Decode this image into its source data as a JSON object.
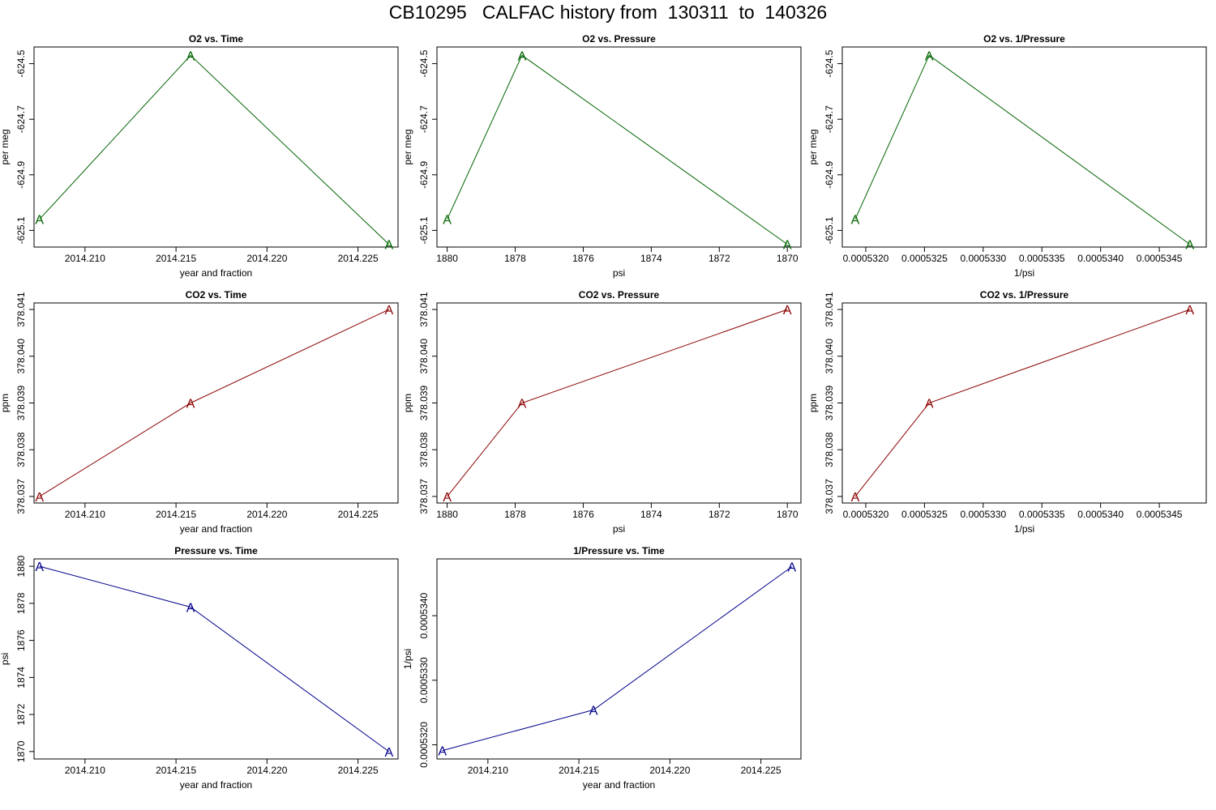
{
  "title": "CB10295   CALFAC history from  130311  to  140326",
  "colors": {
    "o2": "#006400",
    "co2": "#8b0000",
    "pressure": "#00008b",
    "frame": "#000000"
  },
  "chart_data": [
    {
      "type": "line",
      "title": "O2 vs. Time",
      "xlabel": "year and fraction",
      "ylabel": "per meg",
      "color": "o2",
      "marker": "A",
      "x": [
        2014.2075,
        2014.2158,
        2014.2267
      ],
      "y": [
        -625.06,
        -624.47,
        -625.15
      ],
      "xlim": [
        2014.2072,
        2014.2272
      ],
      "ylim": [
        -625.16,
        -624.44
      ],
      "xticks": [
        2014.21,
        2014.215,
        2014.22,
        2014.225
      ],
      "xtick_labels": [
        "2014.210",
        "2014.215",
        "2014.220",
        "2014.225"
      ],
      "yticks": [
        -625.1,
        -624.9,
        -624.7,
        -624.5
      ],
      "ytick_labels": [
        "-625.1",
        "-624.9",
        "-624.7",
        "-624.5"
      ]
    },
    {
      "type": "line",
      "title": "O2 vs. Pressure",
      "xlabel": "psi",
      "ylabel": "per meg",
      "color": "o2",
      "marker": "A",
      "x": [
        1880,
        1877.8,
        1870
      ],
      "y": [
        -625.06,
        -624.47,
        -625.15
      ],
      "xlim": [
        1880.3,
        1869.6
      ],
      "ylim": [
        -625.16,
        -624.44
      ],
      "xticks": [
        1880,
        1878,
        1876,
        1874,
        1872,
        1870
      ],
      "xtick_labels": [
        "1880",
        "1878",
        "1876",
        "1874",
        "1872",
        "1870"
      ],
      "yticks": [
        -625.1,
        -624.9,
        -624.7,
        -624.5
      ],
      "ytick_labels": [
        "-625.1",
        "-624.9",
        "-624.7",
        "-624.5"
      ]
    },
    {
      "type": "line",
      "title": "O2 vs. 1/Pressure",
      "xlabel": "1/psi",
      "ylabel": "per meg",
      "color": "o2",
      "marker": "A",
      "x": [
        0.00053191,
        0.00053254,
        0.00053476
      ],
      "y": [
        -625.06,
        -624.47,
        -625.15
      ],
      "xlim": [
        0.0005318,
        0.0005349
      ],
      "ylim": [
        -625.16,
        -624.44
      ],
      "xticks": [
        0.000532,
        0.0005325,
        0.000533,
        0.0005335,
        0.000534,
        0.0005345
      ],
      "xtick_labels": [
        "0.0005320",
        "0.0005325",
        "0.0005330",
        "0.0005335",
        "0.0005340",
        "0.0005345"
      ],
      "yticks": [
        -625.1,
        -624.9,
        -624.7,
        -624.5
      ],
      "ytick_labels": [
        "-625.1",
        "-624.9",
        "-624.7",
        "-624.5"
      ]
    },
    {
      "type": "line",
      "title": "CO2 vs. Time",
      "xlabel": "year and fraction",
      "ylabel": "ppm",
      "color": "co2",
      "marker": "A",
      "x": [
        2014.2075,
        2014.2158,
        2014.2267
      ],
      "y": [
        378.037,
        378.039,
        378.041
      ],
      "xlim": [
        2014.2072,
        2014.2272
      ],
      "ylim": [
        378.03686,
        378.04114
      ],
      "xticks": [
        2014.21,
        2014.215,
        2014.22,
        2014.225
      ],
      "xtick_labels": [
        "2014.210",
        "2014.215",
        "2014.220",
        "2014.225"
      ],
      "yticks": [
        378.037,
        378.038,
        378.039,
        378.04,
        378.041
      ],
      "ytick_labels": [
        "378.037",
        "378.038",
        "378.039",
        "378.040",
        "378.041"
      ]
    },
    {
      "type": "line",
      "title": "CO2 vs. Pressure",
      "xlabel": "psi",
      "ylabel": "ppm",
      "color": "co2",
      "marker": "A",
      "x": [
        1880,
        1877.8,
        1870
      ],
      "y": [
        378.037,
        378.039,
        378.041
      ],
      "xlim": [
        1880.3,
        1869.6
      ],
      "ylim": [
        378.03686,
        378.04114
      ],
      "xticks": [
        1880,
        1878,
        1876,
        1874,
        1872,
        1870
      ],
      "xtick_labels": [
        "1880",
        "1878",
        "1876",
        "1874",
        "1872",
        "1870"
      ],
      "yticks": [
        378.037,
        378.038,
        378.039,
        378.04,
        378.041
      ],
      "ytick_labels": [
        "378.037",
        "378.038",
        "378.039",
        "378.040",
        "378.041"
      ]
    },
    {
      "type": "line",
      "title": "CO2 vs. 1/Pressure",
      "xlabel": "1/psi",
      "ylabel": "ppm",
      "color": "co2",
      "marker": "A",
      "x": [
        0.00053191,
        0.00053254,
        0.00053476
      ],
      "y": [
        378.037,
        378.039,
        378.041
      ],
      "xlim": [
        0.0005318,
        0.0005349
      ],
      "ylim": [
        378.03686,
        378.04114
      ],
      "xticks": [
        0.000532,
        0.0005325,
        0.000533,
        0.0005335,
        0.000534,
        0.0005345
      ],
      "xtick_labels": [
        "0.0005320",
        "0.0005325",
        "0.0005330",
        "0.0005335",
        "0.0005340",
        "0.0005345"
      ],
      "yticks": [
        378.037,
        378.038,
        378.039,
        378.04,
        378.041
      ],
      "ytick_labels": [
        "378.037",
        "378.038",
        "378.039",
        "378.040",
        "378.041"
      ]
    },
    {
      "type": "line",
      "title": "Pressure vs. Time",
      "xlabel": "year and fraction",
      "ylabel": "psi",
      "color": "pressure",
      "marker": "A",
      "x": [
        2014.2075,
        2014.2158,
        2014.2267
      ],
      "y": [
        1880,
        1877.8,
        1870
      ],
      "xlim": [
        2014.2072,
        2014.2272
      ],
      "ylim": [
        1869.6,
        1880.4
      ],
      "xticks": [
        2014.21,
        2014.215,
        2014.22,
        2014.225
      ],
      "xtick_labels": [
        "2014.210",
        "2014.215",
        "2014.220",
        "2014.225"
      ],
      "yticks": [
        1870,
        1872,
        1874,
        1876,
        1878,
        1880
      ],
      "ytick_labels": [
        "1870",
        "1872",
        "1874",
        "1876",
        "1878",
        "1880"
      ]
    },
    {
      "type": "line",
      "title": "1/Pressure vs. Time",
      "xlabel": "year and fraction",
      "ylabel": "1/psi",
      "color": "pressure",
      "marker": "A",
      "x": [
        2014.2075,
        2014.2158,
        2014.2267
      ],
      "y": [
        0.00053191,
        0.00053254,
        0.00053476
      ],
      "xlim": [
        2014.2072,
        2014.2272
      ],
      "ylim": [
        0.00053178,
        0.00053488
      ],
      "xticks": [
        2014.21,
        2014.215,
        2014.22,
        2014.225
      ],
      "xtick_labels": [
        "2014.210",
        "2014.215",
        "2014.220",
        "2014.225"
      ],
      "yticks": [
        0.000532,
        0.000533,
        0.000534
      ],
      "ytick_labels": [
        "0.0005320",
        "0.0005330",
        "0.0005340"
      ]
    }
  ]
}
